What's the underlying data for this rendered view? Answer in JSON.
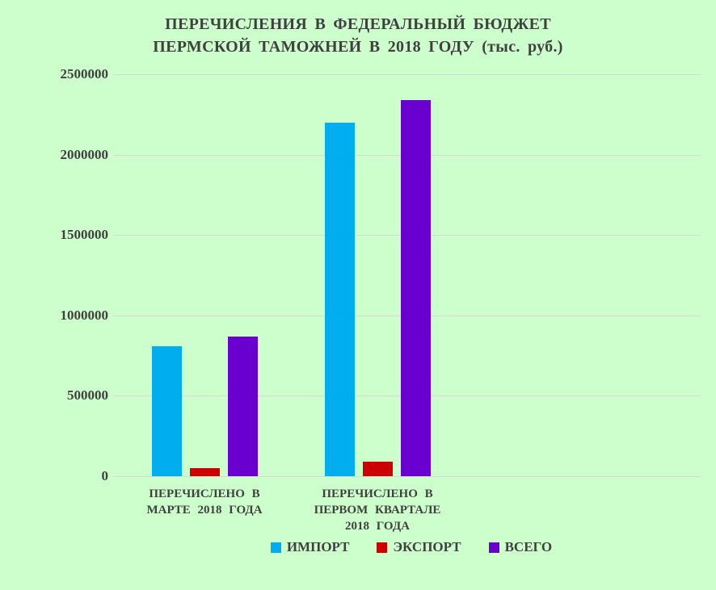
{
  "title": {
    "line1": "ПЕРЕЧИСЛЕНИЯ В ФЕДЕРАЛЬНЫЙ БЮДЖЕТ",
    "line2": "ПЕРМСКОЙ ТАМОЖНЕЙ В 2018 ГОДУ (тыс. руб.)"
  },
  "chart_data": {
    "type": "bar",
    "title": "ПЕРЕЧИСЛЕНИЯ В ФЕДЕРАЛЬНЫЙ БЮДЖЕТ ПЕРМСКОЙ ТАМОЖНЕЙ В 2018 ГОДУ (тыс. руб.)",
    "categories": [
      "ПЕРЕЧИСЛЕНО В МАРТЕ 2018 ГОДА",
      "ПЕРЕЧИСЛЕНО В ПЕРВОМ КВАРТАЛЕ 2018 ГОДА"
    ],
    "category_label_lines": [
      [
        "ПЕРЕЧИСЛЕНО В",
        "МАРТЕ 2018 ГОДА"
      ],
      [
        "ПЕРЕЧИСЛЕНО В",
        "ПЕРВОМ КВАРТАЛЕ",
        "2018 ГОДА"
      ]
    ],
    "series": [
      {
        "name": "ИМПОРТ",
        "color": "#00AEEF",
        "values": [
          810000,
          2200000
        ]
      },
      {
        "name": "ЭКСПОРТ",
        "color": "#CC0000",
        "values": [
          50000,
          90000
        ]
      },
      {
        "name": "ВСЕГО",
        "color": "#6A00D0",
        "values": [
          870000,
          2340000
        ]
      }
    ],
    "ylim": [
      0,
      2500000
    ],
    "yticks": [
      0,
      500000,
      1000000,
      1500000,
      2000000,
      2500000
    ],
    "ytick_labels": [
      "0",
      "500000",
      "1000000",
      "1500000",
      "2000000",
      "2500000"
    ],
    "grid": true,
    "legend_position": "bottom"
  },
  "colors": {
    "background": "#CCFFCC",
    "text": "#404040",
    "gridline": "#DDD6D6"
  }
}
